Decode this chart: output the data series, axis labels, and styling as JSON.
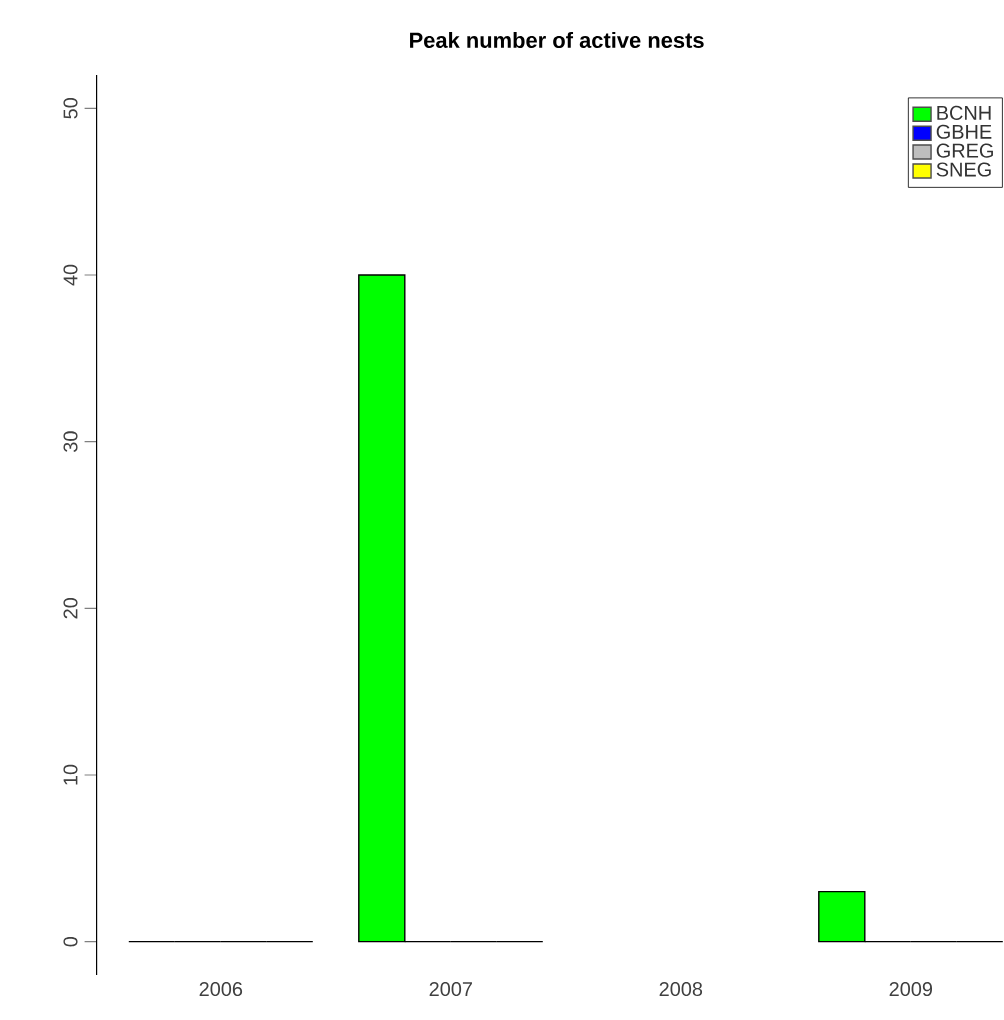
{
  "chart_data": {
    "type": "bar",
    "title": "Peak number of active nests",
    "categories": [
      "2006",
      "2007",
      "2008",
      "2009"
    ],
    "series": [
      {
        "name": "BCNH",
        "color": "#00ff00",
        "values": [
          0,
          40,
          null,
          3
        ]
      },
      {
        "name": "GBHE",
        "color": "#0000ff",
        "values": [
          0,
          0,
          null,
          0
        ]
      },
      {
        "name": "GREG",
        "color": "#bebebe",
        "values": [
          0,
          0,
          null,
          0
        ]
      },
      {
        "name": "SNEG",
        "color": "#ffff00",
        "values": [
          0,
          0,
          null,
          0
        ]
      }
    ],
    "ylim": [
      0,
      50
    ],
    "yticks": [
      0,
      10,
      20,
      30,
      40,
      50
    ],
    "legend": "top right"
  }
}
